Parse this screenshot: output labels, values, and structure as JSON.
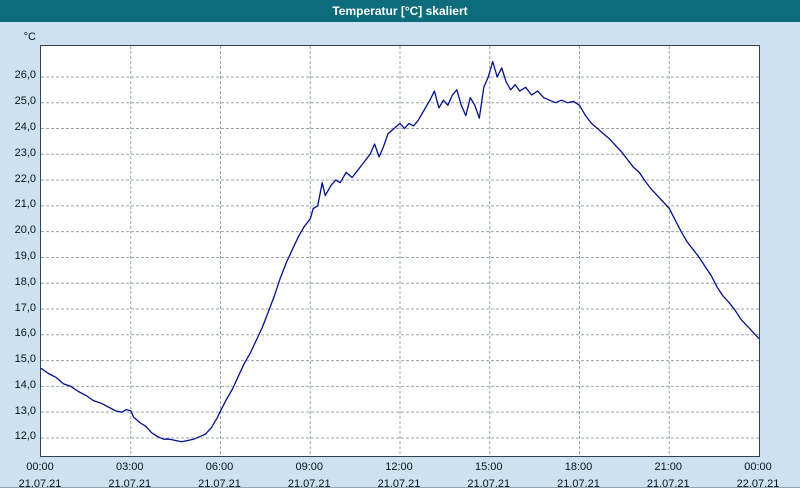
{
  "window": {
    "title": "Temperatur [°C] skaliert"
  },
  "colors": {
    "title_bar": "#0d6b7c",
    "background": "#cde2f0",
    "plot_background": "#ffffff",
    "grid": "#98a4ad",
    "line": "#00128b",
    "text": "#06121f"
  },
  "chart_data": {
    "type": "line",
    "title": "Temperatur [°C] skaliert",
    "xlabel": "",
    "ylabel": "°C",
    "grid": "dashed",
    "legend": "none",
    "xlim": [
      0,
      24
    ],
    "ylim": [
      11.3,
      27.2
    ],
    "yticks": [
      26,
      25,
      24,
      23,
      22,
      21,
      20,
      19,
      18,
      17,
      16,
      15,
      14,
      13,
      12
    ],
    "ytick_labels": [
      "26,0",
      "25,0",
      "24,0",
      "23,0",
      "22,0",
      "21,0",
      "20,0",
      "19,0",
      "18,0",
      "17,0",
      "16,0",
      "15,0",
      "14,0",
      "13,0",
      "12,0"
    ],
    "xticks": [
      0,
      3,
      6,
      9,
      12,
      15,
      18,
      21,
      24
    ],
    "xtick_times": [
      "00:00",
      "03:00",
      "06:00",
      "09:00",
      "12:00",
      "15:00",
      "18:00",
      "21:00",
      "00:00"
    ],
    "xtick_dates": [
      "21.07.21",
      "21.07.21",
      "21.07.21",
      "21.07.21",
      "21.07.21",
      "21.07.21",
      "21.07.21",
      "21.07.21",
      "22.07.21"
    ],
    "series": [
      {
        "name": "Temperatur",
        "color": "#00128b",
        "points": [
          [
            0,
            14.7
          ],
          [
            0.25,
            14.5
          ],
          [
            0.5,
            14.35
          ],
          [
            0.75,
            14.1
          ],
          [
            1,
            14.0
          ],
          [
            1.25,
            13.8
          ],
          [
            1.5,
            13.65
          ],
          [
            1.75,
            13.45
          ],
          [
            2,
            13.35
          ],
          [
            2.25,
            13.2
          ],
          [
            2.5,
            13.05
          ],
          [
            2.7,
            13.0
          ],
          [
            2.85,
            13.1
          ],
          [
            3,
            13.05
          ],
          [
            3.1,
            12.8
          ],
          [
            3.3,
            12.6
          ],
          [
            3.5,
            12.45
          ],
          [
            3.7,
            12.2
          ],
          [
            3.9,
            12.05
          ],
          [
            4.1,
            11.95
          ],
          [
            4.3,
            11.95
          ],
          [
            4.5,
            11.9
          ],
          [
            4.7,
            11.85
          ],
          [
            4.9,
            11.9
          ],
          [
            5.1,
            11.95
          ],
          [
            5.3,
            12.05
          ],
          [
            5.5,
            12.15
          ],
          [
            5.7,
            12.4
          ],
          [
            5.9,
            12.8
          ],
          [
            6,
            13.05
          ],
          [
            6.2,
            13.5
          ],
          [
            6.4,
            13.9
          ],
          [
            6.6,
            14.4
          ],
          [
            6.8,
            14.9
          ],
          [
            7,
            15.3
          ],
          [
            7.2,
            15.8
          ],
          [
            7.4,
            16.3
          ],
          [
            7.6,
            16.9
          ],
          [
            7.8,
            17.5
          ],
          [
            8,
            18.2
          ],
          [
            8.2,
            18.8
          ],
          [
            8.4,
            19.3
          ],
          [
            8.6,
            19.8
          ],
          [
            8.8,
            20.2
          ],
          [
            9,
            20.5
          ],
          [
            9.1,
            20.9
          ],
          [
            9.25,
            21.0
          ],
          [
            9.4,
            21.9
          ],
          [
            9.5,
            21.4
          ],
          [
            9.7,
            21.8
          ],
          [
            9.85,
            22.0
          ],
          [
            10,
            21.9
          ],
          [
            10.2,
            22.3
          ],
          [
            10.4,
            22.1
          ],
          [
            10.6,
            22.4
          ],
          [
            10.8,
            22.7
          ],
          [
            11,
            23.0
          ],
          [
            11.15,
            23.4
          ],
          [
            11.3,
            22.9
          ],
          [
            11.45,
            23.3
          ],
          [
            11.6,
            23.8
          ],
          [
            11.8,
            24.0
          ],
          [
            12,
            24.2
          ],
          [
            12.15,
            24.0
          ],
          [
            12.3,
            24.2
          ],
          [
            12.45,
            24.1
          ],
          [
            12.6,
            24.3
          ],
          [
            12.8,
            24.7
          ],
          [
            13,
            25.1
          ],
          [
            13.15,
            25.45
          ],
          [
            13.3,
            24.8
          ],
          [
            13.45,
            25.1
          ],
          [
            13.6,
            24.9
          ],
          [
            13.75,
            25.3
          ],
          [
            13.9,
            25.5
          ],
          [
            14.05,
            24.9
          ],
          [
            14.2,
            24.5
          ],
          [
            14.35,
            25.2
          ],
          [
            14.5,
            24.9
          ],
          [
            14.65,
            24.4
          ],
          [
            14.8,
            25.6
          ],
          [
            14.95,
            26.0
          ],
          [
            15.1,
            26.6
          ],
          [
            15.25,
            26.0
          ],
          [
            15.4,
            26.35
          ],
          [
            15.55,
            25.8
          ],
          [
            15.7,
            25.5
          ],
          [
            15.85,
            25.7
          ],
          [
            16,
            25.45
          ],
          [
            16.2,
            25.6
          ],
          [
            16.4,
            25.3
          ],
          [
            16.6,
            25.45
          ],
          [
            16.8,
            25.2
          ],
          [
            17,
            25.1
          ],
          [
            17.2,
            25.0
          ],
          [
            17.4,
            25.1
          ],
          [
            17.6,
            25.0
          ],
          [
            17.8,
            25.05
          ],
          [
            18,
            24.9
          ],
          [
            18.2,
            24.5
          ],
          [
            18.4,
            24.2
          ],
          [
            18.6,
            24.0
          ],
          [
            18.8,
            23.8
          ],
          [
            19,
            23.6
          ],
          [
            19.2,
            23.35
          ],
          [
            19.4,
            23.1
          ],
          [
            19.6,
            22.8
          ],
          [
            19.8,
            22.5
          ],
          [
            20,
            22.3
          ],
          [
            20.2,
            21.95
          ],
          [
            20.4,
            21.65
          ],
          [
            20.6,
            21.4
          ],
          [
            20.8,
            21.15
          ],
          [
            21,
            20.9
          ],
          [
            21.2,
            20.45
          ],
          [
            21.4,
            20.0
          ],
          [
            21.6,
            19.6
          ],
          [
            21.8,
            19.3
          ],
          [
            22,
            19.0
          ],
          [
            22.2,
            18.65
          ],
          [
            22.4,
            18.3
          ],
          [
            22.6,
            17.85
          ],
          [
            22.8,
            17.5
          ],
          [
            23,
            17.25
          ],
          [
            23.2,
            16.95
          ],
          [
            23.4,
            16.6
          ],
          [
            23.6,
            16.35
          ],
          [
            23.8,
            16.1
          ],
          [
            24,
            15.85
          ]
        ]
      }
    ]
  }
}
